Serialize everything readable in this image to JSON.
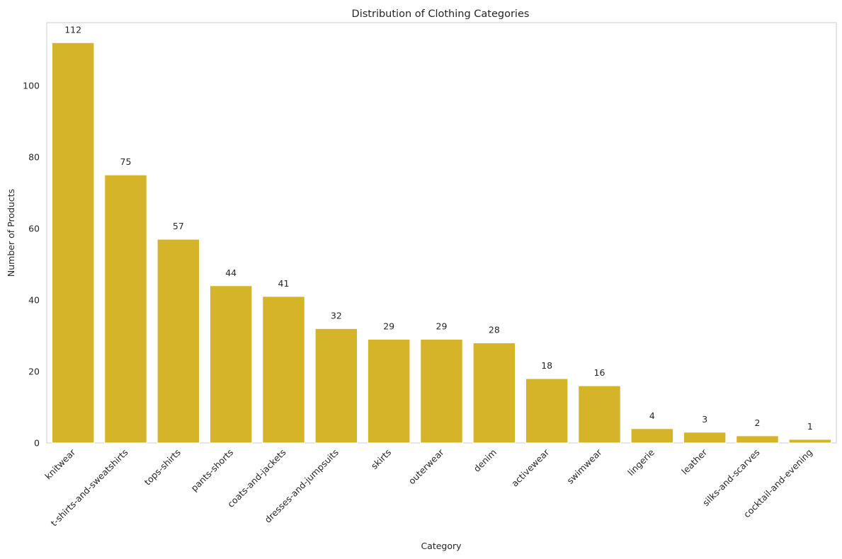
{
  "chart_data": {
    "type": "bar",
    "title": "Distribution of Clothing Categories",
    "xlabel": "Category",
    "ylabel": "Number of Products",
    "categories": [
      "knitwear",
      "t-shirts-and-sweatshirts",
      "tops-shirts",
      "pants-shorts",
      "coats-and-jackets",
      "dresses-and-jumpsuits",
      "skirts",
      "outerwear",
      "denim",
      "activewear",
      "swimwear",
      "lingerie",
      "leather",
      "silks-and-scarves",
      "cocktail-and-evening"
    ],
    "values": [
      112,
      75,
      57,
      44,
      41,
      32,
      29,
      29,
      28,
      18,
      16,
      4,
      3,
      2,
      1
    ],
    "ylim": [
      0,
      117.6
    ],
    "yticks": [
      0,
      20,
      40,
      60,
      80,
      100
    ],
    "grid": false,
    "bar_color": "#d6b42a",
    "tick_label_rotation": "45"
  }
}
